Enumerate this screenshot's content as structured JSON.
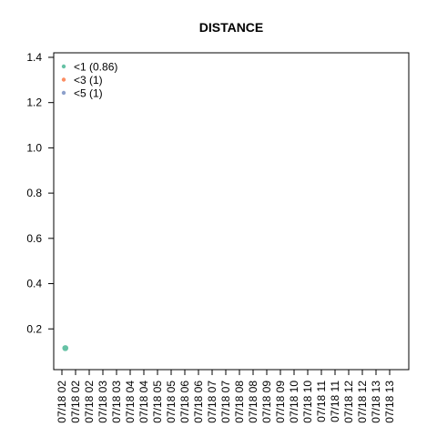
{
  "chart_data": {
    "type": "scatter",
    "title": "DISTANCE",
    "xlabel": "",
    "ylabel": "",
    "ylim": [
      0.02,
      1.42
    ],
    "y_ticks": [
      0.2,
      0.4,
      0.6,
      0.8,
      1.0,
      1.2,
      1.4
    ],
    "y_tick_labels": [
      "0.2",
      "0.4",
      "0.6",
      "0.8",
      "1.0",
      "1.2",
      "1.4"
    ],
    "x_tick_labels": [
      "07/18 02",
      "07/18 02",
      "07/18 02",
      "07/18 03",
      "07/18 03",
      "07/18 04",
      "07/18 04",
      "07/18 05",
      "07/18 05",
      "07/18 06",
      "07/18 06",
      "07/18 07",
      "07/18 07",
      "07/18 08",
      "07/18 08",
      "07/18 09",
      "07/18 09",
      "07/18 10",
      "07/18 10",
      "07/18 11",
      "07/18 11",
      "07/18 12",
      "07/18 12",
      "07/18 13",
      "07/18 13"
    ],
    "grid": false,
    "legend_position": "top-left",
    "series": [
      {
        "name": "<1 (0.86)",
        "color": "#66c2a5",
        "points": [
          {
            "x_index": 0.25,
            "y": 0.115
          }
        ]
      },
      {
        "name": "<3 (1)",
        "color": "#fc8d62",
        "points": []
      },
      {
        "name": "<5 (1)",
        "color": "#8da0cb",
        "points": []
      }
    ]
  }
}
